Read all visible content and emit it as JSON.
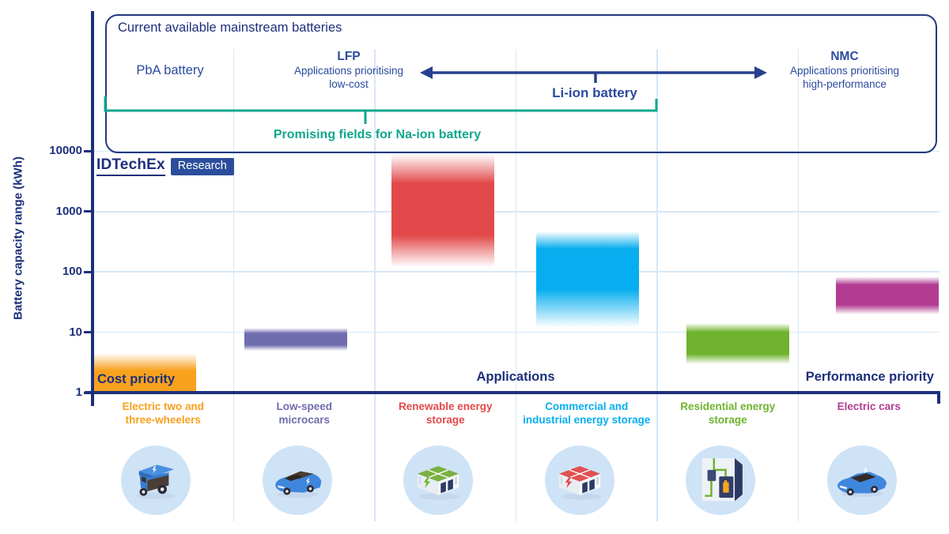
{
  "brand": {
    "name": "IDTechEx",
    "badge": "Research"
  },
  "top_box": {
    "title": "Current available mainstream batteries",
    "pba": "PbA battery",
    "lfp": {
      "title": "LFP",
      "line1": "Applications prioritising",
      "line2": "low-cost"
    },
    "li_ion": "Li-ion battery",
    "nmc": {
      "title": "NMC",
      "line1": "Applications prioritising",
      "line2": "high-performance"
    },
    "na_ion": "Promising fields for Na-ion battery"
  },
  "axis_labels": {
    "cost_priority": "Cost priority",
    "applications": "Applications",
    "performance_priority": "Performance priority"
  },
  "colors": {
    "navy": "#1d2f7c",
    "royal_blue": "#2b4a9e",
    "teal": "#0fa78e",
    "grid": "#d7e7f6",
    "icon_circle_bg": "#cfe3f6",
    "badge_bg": "#2b4e9c"
  },
  "chart_data": {
    "type": "bar",
    "subtype": "floating-range-bars",
    "scale": "log",
    "title": "Current available mainstream batteries",
    "ylabel": "Battery capacity range (kWh)",
    "ylim": [
      1,
      10000
    ],
    "yticks": [
      1,
      10,
      100,
      1000,
      10000
    ],
    "grid": "horizontal decade gridlines + vertical column separators",
    "legend_position": "none",
    "categories": [
      "Electric two and three-wheelers",
      "Low-speed microcars",
      "Renewable energy storage",
      "Commercial and industrial energy storage",
      "Residential energy storage",
      "Electric cars"
    ],
    "bars": [
      {
        "key": "electric-three-wheeler",
        "label_lines": [
          "Electric two and",
          "three-wheelers"
        ],
        "color": "#F8A11D",
        "range_kwh": [
          1,
          4.5
        ],
        "fade_pct": [
          45,
          0
        ]
      },
      {
        "key": "low-speed-microcar",
        "label_lines": [
          "Low-speed",
          "microcars"
        ],
        "color": "#6F6CAE",
        "range_kwh": [
          5,
          12
        ],
        "fade_pct": [
          25,
          25
        ]
      },
      {
        "key": "renewable-energy-storage",
        "label_lines": [
          "Renewable energy",
          "storage"
        ],
        "color": "#E2494A",
        "range_kwh": [
          120,
          9000
        ],
        "fade_pct": [
          26,
          28
        ]
      },
      {
        "key": "commercial-industrial-energy-storage",
        "label_lines": [
          "Commercial and",
          "industrial energy storage"
        ],
        "color": "#06AEEF",
        "range_kwh": [
          12,
          470
        ],
        "fade_pct": [
          18,
          40
        ]
      },
      {
        "key": "residential-energy-storage",
        "label_lines": [
          "Residential energy",
          "storage"
        ],
        "color": "#6FB32E",
        "range_kwh": [
          3,
          14
        ],
        "fade_pct": [
          22,
          25
        ]
      },
      {
        "key": "electric-car",
        "label_lines": [
          "Electric cars"
        ],
        "color": "#B23C92",
        "range_kwh": [
          20,
          85
        ],
        "fade_pct": [
          22,
          25
        ]
      }
    ]
  }
}
